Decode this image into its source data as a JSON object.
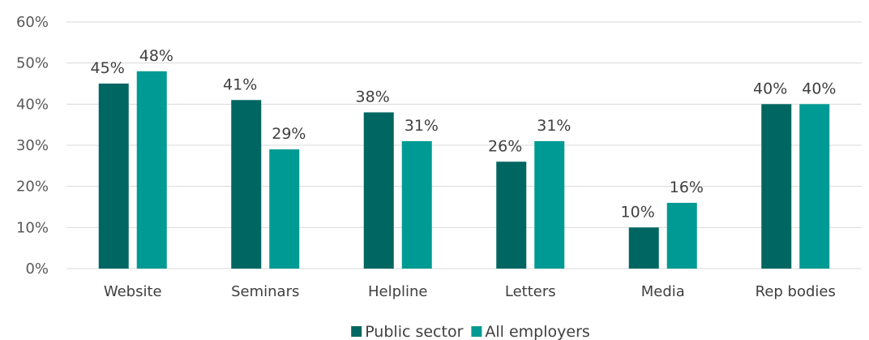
{
  "chart_data": {
    "type": "bar",
    "categories": [
      "Website",
      "Seminars",
      "Helpline",
      "Letters",
      "Media",
      "Rep bodies"
    ],
    "series": [
      {
        "name": "Public sector",
        "values": [
          45,
          41,
          38,
          26,
          10,
          40
        ],
        "labels": [
          "45%",
          "41%",
          "38%",
          "26%",
          "10%",
          "40%"
        ],
        "color": "#006661"
      },
      {
        "name": "All employers",
        "values": [
          48,
          29,
          31,
          31,
          16,
          40
        ],
        "labels": [
          "48%",
          "29%",
          "31%",
          "31%",
          "16%",
          "40%"
        ],
        "color": "#009a94"
      }
    ],
    "ylim": [
      0,
      60
    ],
    "yticks": [
      0,
      10,
      20,
      30,
      40,
      50,
      60
    ],
    "ytick_labels": [
      "0%",
      "10%",
      "20%",
      "30%",
      "40%",
      "50%",
      "60%"
    ],
    "grid": true,
    "legend_position": "bottom-center",
    "title": "",
    "xlabel": "",
    "ylabel": ""
  }
}
